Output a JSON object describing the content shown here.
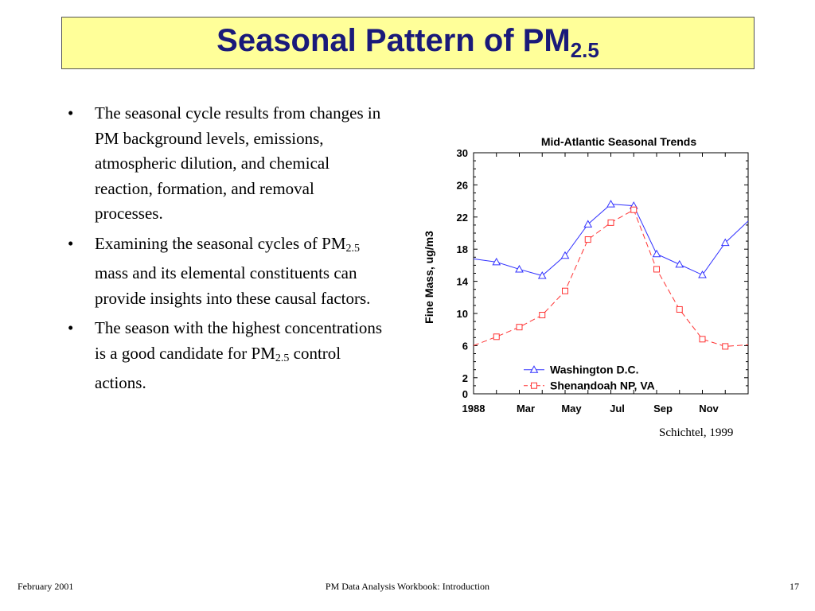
{
  "slide": {
    "title_main": "Seasonal Pattern of PM",
    "title_sub": "2.5",
    "bullets": [
      {
        "text": "The seasonal cycle results from changes in PM background levels, emissions, atmospheric dilution, and chemical reaction, formation, and removal processes."
      },
      {
        "pre": "Examining the seasonal cycles of PM",
        "sub": "2.5",
        "post": " mass and its elemental constituents can provide insights into these causal factors."
      },
      {
        "pre": "The season with the highest concentrations is a good candidate for PM",
        "sub": "2.5",
        "post": " control actions."
      }
    ],
    "bullet_glyph": "•",
    "source": "Schichtel, 1999"
  },
  "footer": {
    "left": "February 2001",
    "center": "PM Data Analysis Workbook: Introduction",
    "right": "17"
  },
  "chart_data": {
    "type": "line",
    "title": "Mid-Atlantic Seasonal Trends",
    "xlabel": "",
    "ylabel": "Fine Mass, ug/m3",
    "x": [
      0,
      1,
      2,
      3,
      4,
      5,
      6,
      7,
      8,
      9,
      10,
      11,
      12
    ],
    "xticks": [
      {
        "x": 0,
        "label": "1988"
      },
      {
        "x": 2,
        "label": "Mar"
      },
      {
        "x": 4,
        "label": "May"
      },
      {
        "x": 6,
        "label": "Jul"
      },
      {
        "x": 8,
        "label": "Sep"
      },
      {
        "x": 10,
        "label": "Nov"
      }
    ],
    "xlim": [
      0,
      12
    ],
    "ylim": [
      0,
      30
    ],
    "yticks": [
      0,
      2,
      6,
      10,
      14,
      18,
      22,
      26,
      30
    ],
    "grid": false,
    "legend_position": "bottom-right",
    "series": [
      {
        "name": "Washington D.C.",
        "marker": "triangle",
        "style": "solid",
        "color": "#3333ff",
        "values": [
          16.8,
          16.4,
          15.5,
          14.7,
          17.2,
          21.1,
          23.6,
          23.4,
          17.4,
          16.1,
          14.8,
          18.8,
          21.5
        ]
      },
      {
        "name": "Shenandoah NP, VA",
        "marker": "square",
        "style": "dashed",
        "color": "#ff3333",
        "values": [
          6.0,
          7.1,
          8.3,
          9.8,
          12.8,
          19.2,
          21.3,
          22.9,
          15.5,
          10.5,
          6.8,
          5.9,
          6.1
        ]
      }
    ]
  }
}
